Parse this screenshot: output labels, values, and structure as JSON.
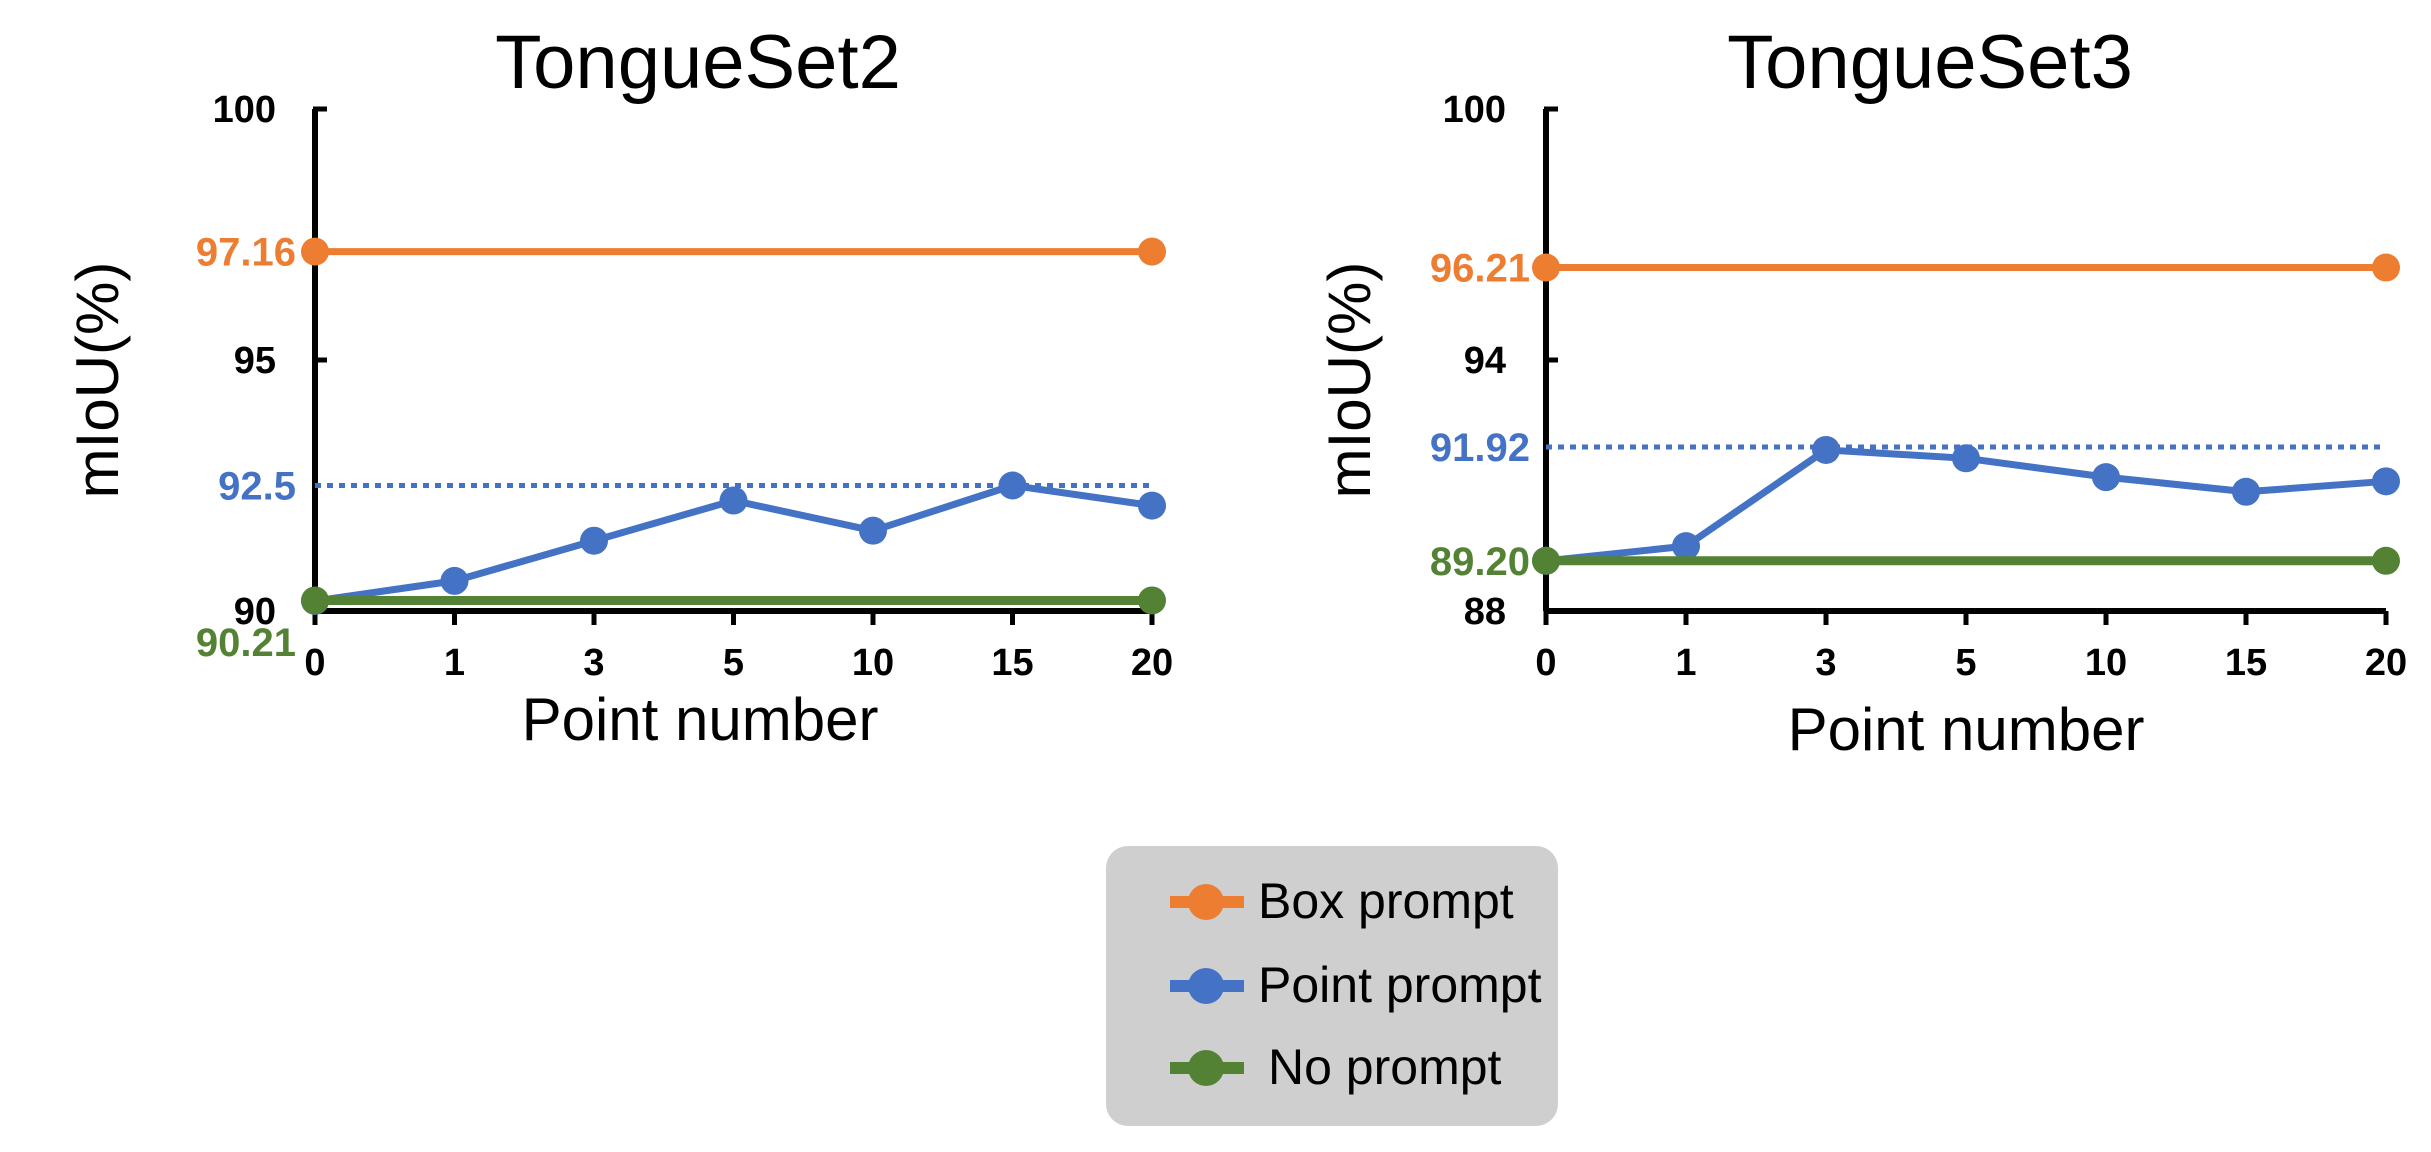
{
  "colors": {
    "box": "#ED7D31",
    "point": "#4472C4",
    "none": "#548235",
    "axis": "#000000"
  },
  "chart_data": [
    {
      "type": "line",
      "title": "TongueSet2",
      "xlabel": "Point number",
      "ylabel": "mIoU(%)",
      "categories": [
        "0",
        "1",
        "3",
        "5",
        "10",
        "15",
        "20"
      ],
      "ylim": [
        90,
        100
      ],
      "yticks": [
        "90",
        "95",
        "100"
      ],
      "series": [
        {
          "name": "Box prompt",
          "color_key": "box",
          "x": [
            "0",
            "20"
          ],
          "values": [
            97.16,
            97.16
          ],
          "label": "97.16"
        },
        {
          "name": "Point prompt",
          "color_key": "point",
          "values": [
            90.2,
            90.6,
            91.4,
            92.2,
            91.6,
            92.5,
            92.1
          ],
          "reference_label": "92.5",
          "reference_value": 92.5
        },
        {
          "name": "No prompt",
          "color_key": "none",
          "x": [
            "0",
            "20"
          ],
          "values": [
            90.21,
            90.21
          ],
          "label": "90.21"
        }
      ]
    },
    {
      "type": "line",
      "title": "TongueSet3",
      "xlabel": "Point number",
      "ylabel": "mIoU(%)",
      "categories": [
        "0",
        "1",
        "3",
        "5",
        "10",
        "15",
        "20"
      ],
      "ylim": [
        88,
        100
      ],
      "yticks": [
        "88",
        "94",
        "100"
      ],
      "series": [
        {
          "name": "Box prompt",
          "color_key": "box",
          "x": [
            "0",
            "20"
          ],
          "values": [
            96.21,
            96.21
          ],
          "label": "96.21"
        },
        {
          "name": "Point prompt",
          "color_key": "point",
          "values": [
            89.2,
            89.55,
            91.85,
            91.65,
            91.2,
            90.85,
            91.1
          ],
          "reference_label": "91.92",
          "reference_value": 91.92
        },
        {
          "name": "No prompt",
          "color_key": "none",
          "x": [
            "0",
            "20"
          ],
          "values": [
            89.2,
            89.2
          ],
          "label": "89.20"
        }
      ]
    }
  ],
  "legend": {
    "items": [
      {
        "label": "Box prompt",
        "color_key": "box"
      },
      {
        "label": "Point prompt",
        "color_key": "point"
      },
      {
        "label": "No prompt",
        "color_key": "none"
      }
    ]
  }
}
